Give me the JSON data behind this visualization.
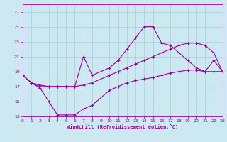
{
  "xlabel": "Windchill (Refroidissement éolien,°C)",
  "bg_color": "#cce8f0",
  "grid_color": "#aaccdd",
  "line_color": "#990099",
  "ylim": [
    13,
    28
  ],
  "xlim": [
    0,
    23
  ],
  "yticks": [
    13,
    15,
    17,
    19,
    21,
    23,
    25,
    27
  ],
  "xticks": [
    0,
    1,
    2,
    3,
    4,
    5,
    6,
    7,
    8,
    9,
    10,
    11,
    12,
    13,
    14,
    15,
    16,
    17,
    18,
    19,
    20,
    21,
    22,
    23
  ],
  "line1_x": [
    0,
    1,
    2,
    3,
    4,
    5,
    6,
    7,
    8,
    10,
    11,
    12,
    13,
    14,
    15,
    16,
    17,
    18,
    19,
    20,
    21,
    22,
    23
  ],
  "line1_y": [
    18.5,
    17.5,
    16.8,
    15.0,
    13.2,
    13.2,
    13.2,
    14.0,
    14.5,
    16.5,
    17.0,
    17.5,
    17.8,
    18.0,
    18.2,
    18.5,
    18.8,
    19.0,
    19.2,
    19.2,
    19.0,
    19.0,
    19.0
  ],
  "line2_x": [
    0,
    1,
    2,
    3,
    4,
    5,
    6,
    7,
    8,
    10,
    11,
    12,
    13,
    14,
    15,
    16,
    17,
    18,
    19,
    20,
    21,
    22,
    23
  ],
  "line2_y": [
    18.5,
    17.5,
    17.2,
    17.0,
    17.0,
    17.0,
    17.0,
    21.0,
    18.5,
    19.5,
    20.5,
    22.0,
    23.5,
    25.0,
    25.0,
    22.8,
    22.5,
    21.5,
    20.5,
    19.5,
    19.0,
    20.5,
    19.0
  ],
  "line3_x": [
    0,
    1,
    2,
    3,
    4,
    5,
    6,
    7,
    8,
    10,
    11,
    12,
    13,
    14,
    15,
    16,
    17,
    18,
    19,
    20,
    21,
    22,
    23
  ],
  "line3_y": [
    18.5,
    17.5,
    17.0,
    17.0,
    17.0,
    17.0,
    17.0,
    17.2,
    17.5,
    18.5,
    19.0,
    19.5,
    20.0,
    20.5,
    21.0,
    21.5,
    22.0,
    22.5,
    22.8,
    22.8,
    22.5,
    21.5,
    19.0
  ]
}
